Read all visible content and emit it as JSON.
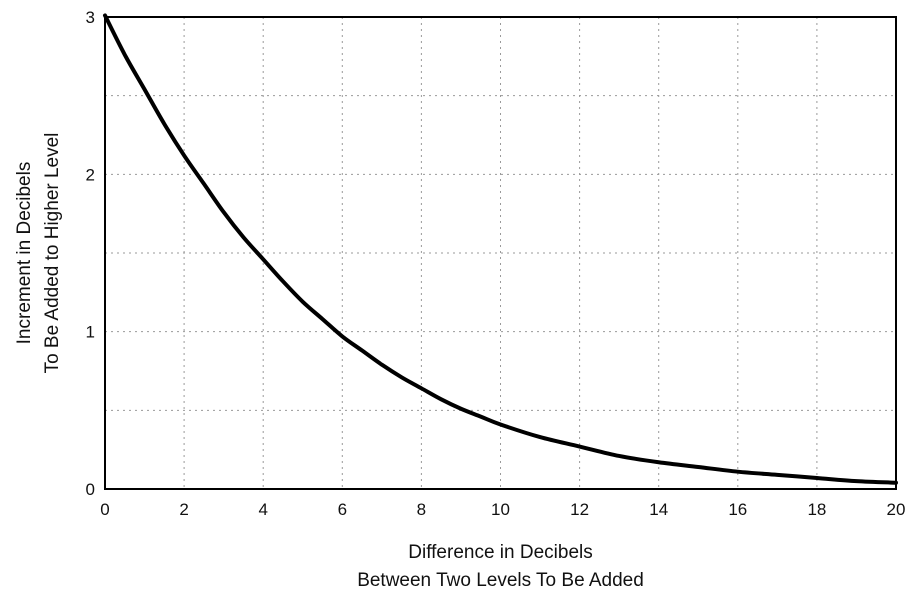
{
  "chart_data": {
    "type": "line",
    "title": "",
    "xlabel": [
      "Difference in Decibels",
      "Between Two Levels To Be Added"
    ],
    "ylabel": [
      "Increment in Decibels",
      "To Be Added to Higher Level"
    ],
    "xlim": [
      0,
      20
    ],
    "ylim": [
      0,
      3
    ],
    "x_ticks": [
      "0",
      "2",
      "4",
      "6",
      "8",
      "10",
      "12",
      "14",
      "16",
      "18",
      "20"
    ],
    "y_ticks": [
      "0",
      "1",
      "2",
      "3"
    ],
    "grid": true,
    "grid_style": "dotted",
    "series": [
      {
        "color": "#000000",
        "x": [
          0,
          0.5,
          1,
          1.5,
          2,
          2.5,
          3,
          3.5,
          4,
          4.5,
          5,
          5.5,
          6,
          6.5,
          7,
          7.5,
          8,
          8.5,
          9,
          9.5,
          10,
          11,
          12,
          13,
          14,
          15,
          16,
          17,
          18,
          19,
          20
        ],
        "values": [
          3.01,
          2.76,
          2.54,
          2.32,
          2.12,
          1.94,
          1.76,
          1.6,
          1.46,
          1.32,
          1.19,
          1.08,
          0.97,
          0.88,
          0.79,
          0.71,
          0.64,
          0.57,
          0.51,
          0.46,
          0.41,
          0.33,
          0.27,
          0.21,
          0.17,
          0.14,
          0.11,
          0.09,
          0.07,
          0.05,
          0.04
        ]
      }
    ]
  }
}
